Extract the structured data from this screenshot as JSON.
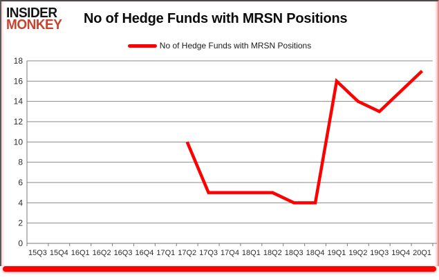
{
  "header": {
    "logo_line1": "INSIDER",
    "logo_line2": "MONKEY",
    "title": "No of Hedge Funds with MRSN Positions"
  },
  "legend": {
    "label": "No of Hedge Funds with MRSN Positions",
    "swatch_color": "#ff0000"
  },
  "colors": {
    "line": "#ff0000",
    "grid": "#898989",
    "axis_text": "#2b2b2b",
    "spine": "#7a7a7a",
    "bottom_bar": "#fb0400",
    "logo_red": "#c8432e"
  },
  "chart_data": {
    "type": "line",
    "title": "No of Hedge Funds with MRSN Positions",
    "categories": [
      "15Q3",
      "15Q4",
      "16Q1",
      "16Q2",
      "16Q3",
      "16Q4",
      "17Q1",
      "17Q2",
      "17Q3",
      "17Q4",
      "18Q1",
      "18Q2",
      "18Q3",
      "18Q4",
      "19Q1",
      "19Q2",
      "19Q3",
      "19Q4",
      "20Q1"
    ],
    "series": [
      {
        "name": "No of Hedge Funds with MRSN Positions",
        "color": "#ff0000",
        "values": [
          null,
          null,
          null,
          null,
          null,
          null,
          null,
          10,
          5,
          5,
          5,
          5,
          4,
          4,
          16,
          14,
          13,
          15,
          17
        ]
      }
    ],
    "ylim": [
      0,
      18
    ],
    "yticks": [
      0,
      2,
      4,
      6,
      8,
      10,
      12,
      14,
      16,
      18
    ],
    "xlabel": "",
    "ylabel": "",
    "grid": "horizontal",
    "legend_position": "top"
  }
}
